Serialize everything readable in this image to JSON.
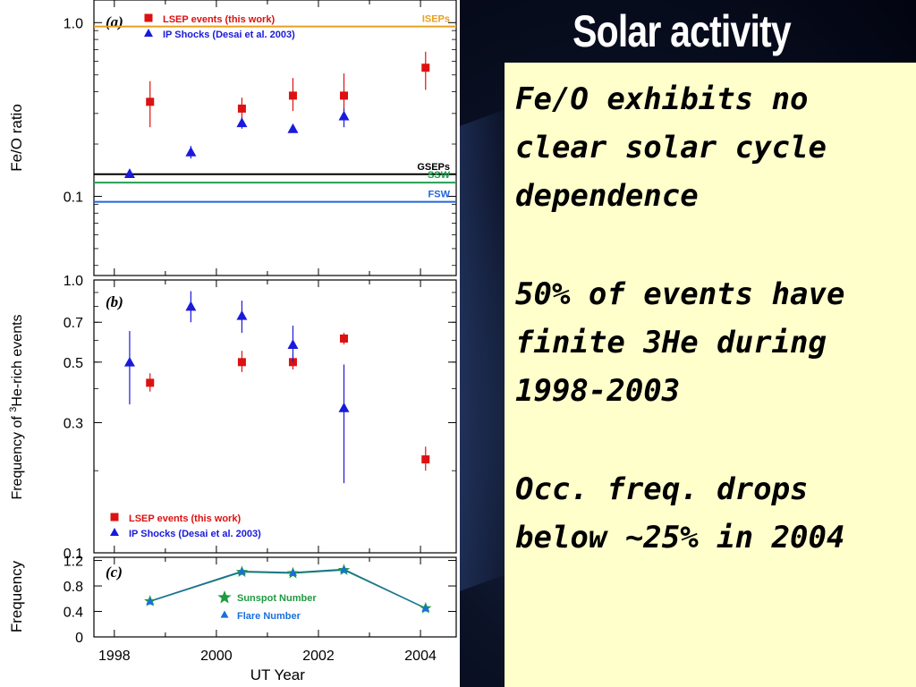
{
  "slide": {
    "title": "Solar activity",
    "bullets": [
      "Fe/O exhibits no clear solar cycle dependence",
      "50% of events have finite 3He during 1998-2003",
      "Occ. freq. drops below ~25% in 2004"
    ]
  },
  "chart_data": [
    {
      "panel": "(a)",
      "type": "scatter",
      "ylabel": "Fe/O ratio",
      "yscale": "log",
      "ylim": [
        0.035,
        1.35
      ],
      "yticks": [
        "1.0",
        "0.1"
      ],
      "legend": [
        "LSEP events (this work)",
        "IP Shocks (Desai et al. 2003)"
      ],
      "reference_lines": [
        {
          "label": "ISEPs",
          "y": 0.95,
          "color": "#e8a020"
        },
        {
          "label": "GSEPs",
          "y": 0.134,
          "color": "#000000"
        },
        {
          "label": "SSW",
          "y": 0.12,
          "color": "#22a050"
        },
        {
          "label": "FSW",
          "y": 0.093,
          "color": "#2266dd"
        }
      ],
      "series": [
        {
          "name": "LSEP events (this work)",
          "color": "#dd1111",
          "marker": "square",
          "points": [
            {
              "x": 1998.7,
              "y": 0.35,
              "lo": 0.25,
              "hi": 0.46
            },
            {
              "x": 2000.5,
              "y": 0.32,
              "lo": 0.28,
              "hi": 0.37
            },
            {
              "x": 2001.5,
              "y": 0.38,
              "lo": 0.31,
              "hi": 0.48
            },
            {
              "x": 2002.5,
              "y": 0.38,
              "lo": 0.31,
              "hi": 0.51
            },
            {
              "x": 2004.1,
              "y": 0.55,
              "lo": 0.41,
              "hi": 0.68
            }
          ]
        },
        {
          "name": "IP Shocks (Desai et al. 2003)",
          "color": "#1a1adc",
          "marker": "triangle",
          "points": [
            {
              "x": 1998.3,
              "y": 0.135,
              "lo": 0.128,
              "hi": 0.141
            },
            {
              "x": 1999.5,
              "y": 0.18,
              "lo": 0.165,
              "hi": 0.195
            },
            {
              "x": 2000.5,
              "y": 0.265,
              "lo": 0.245,
              "hi": 0.285
            },
            {
              "x": 2001.5,
              "y": 0.245,
              "lo": 0.235,
              "hi": 0.255
            },
            {
              "x": 2002.5,
              "y": 0.29,
              "lo": 0.25,
              "hi": 0.32
            }
          ]
        }
      ]
    },
    {
      "panel": "(b)",
      "type": "scatter",
      "ylabel": "Frequency of 3He-rich events",
      "yscale": "log",
      "ylim": [
        0.1,
        1.0
      ],
      "yticks": [
        "1.0",
        "0.7",
        "0.5",
        "0.3",
        "0.1"
      ],
      "legend": [
        "LSEP events (this work)",
        "IP Shocks (Desai et al. 2003)"
      ],
      "series": [
        {
          "name": "LSEP events (this work)",
          "color": "#dd1111",
          "marker": "square",
          "points": [
            {
              "x": 1998.7,
              "y": 0.42,
              "lo": 0.39,
              "hi": 0.455
            },
            {
              "x": 2000.5,
              "y": 0.5,
              "lo": 0.46,
              "hi": 0.55
            },
            {
              "x": 2001.5,
              "y": 0.5,
              "lo": 0.47,
              "hi": 0.53
            },
            {
              "x": 2002.5,
              "y": 0.61,
              "lo": 0.58,
              "hi": 0.64
            },
            {
              "x": 2004.1,
              "y": 0.22,
              "lo": 0.2,
              "hi": 0.245
            }
          ]
        },
        {
          "name": "IP Shocks (Desai et al. 2003)",
          "color": "#1a1adc",
          "marker": "triangle",
          "points": [
            {
              "x": 1998.3,
              "y": 0.5,
              "lo": 0.35,
              "hi": 0.65
            },
            {
              "x": 1999.5,
              "y": 0.8,
              "lo": 0.7,
              "hi": 0.91
            },
            {
              "x": 2000.5,
              "y": 0.74,
              "lo": 0.64,
              "hi": 0.84
            },
            {
              "x": 2001.5,
              "y": 0.58,
              "lo": 0.5,
              "hi": 0.68
            },
            {
              "x": 2002.5,
              "y": 0.34,
              "lo": 0.18,
              "hi": 0.49
            }
          ]
        }
      ]
    },
    {
      "panel": "(c)",
      "type": "line",
      "ylabel": "Frequency",
      "xlabel": "UT Year",
      "ylim": [
        0,
        1.25
      ],
      "yticks": [
        "1.2",
        "0.8",
        "0.4",
        "0"
      ],
      "xticks": [
        "1998",
        "2000",
        "2002",
        "2004"
      ],
      "xlim": [
        1997.6,
        2004.7
      ],
      "legend": [
        "Sunspot Number",
        "Flare Number"
      ],
      "series": [
        {
          "name": "Sunspot Number",
          "color": "#1f9a40",
          "marker": "star",
          "x": [
            1998.7,
            2000.5,
            2001.5,
            2002.5,
            2004.1
          ],
          "y": [
            0.56,
            1.02,
            1.0,
            1.05,
            0.45
          ]
        },
        {
          "name": "Flare Number",
          "color": "#1a6fdc",
          "marker": "triangle",
          "x": [
            1998.7,
            2000.5,
            2001.5,
            2002.5,
            2004.1
          ],
          "y": [
            0.56,
            1.03,
            1.01,
            1.06,
            0.45
          ]
        }
      ]
    }
  ]
}
